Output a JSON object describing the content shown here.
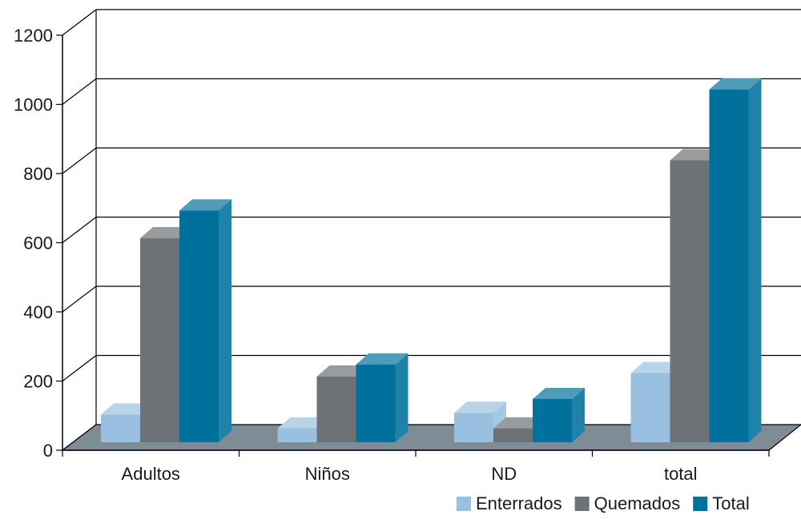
{
  "chart_data": {
    "type": "bar",
    "categories": [
      "Adultos",
      "Niños",
      "ND",
      "total"
    ],
    "series": [
      {
        "name": "Enterrados",
        "values": [
          80,
          40,
          85,
          200
        ],
        "color": "#99c1df"
      },
      {
        "name": "Quemados",
        "values": [
          590,
          190,
          40,
          815
        ],
        "color": "#6c7275"
      },
      {
        "name": "Total",
        "values": [
          670,
          225,
          125,
          1020
        ],
        "color": "#00719d"
      }
    ],
    "yticks": [
      "0",
      "200",
      "400",
      "600",
      "800",
      "1000",
      "1200"
    ],
    "ylim": [
      0,
      1200
    ],
    "grid": true,
    "legend_position": "bottom-right",
    "three_d": true,
    "floor_color": "#7d8c95"
  }
}
